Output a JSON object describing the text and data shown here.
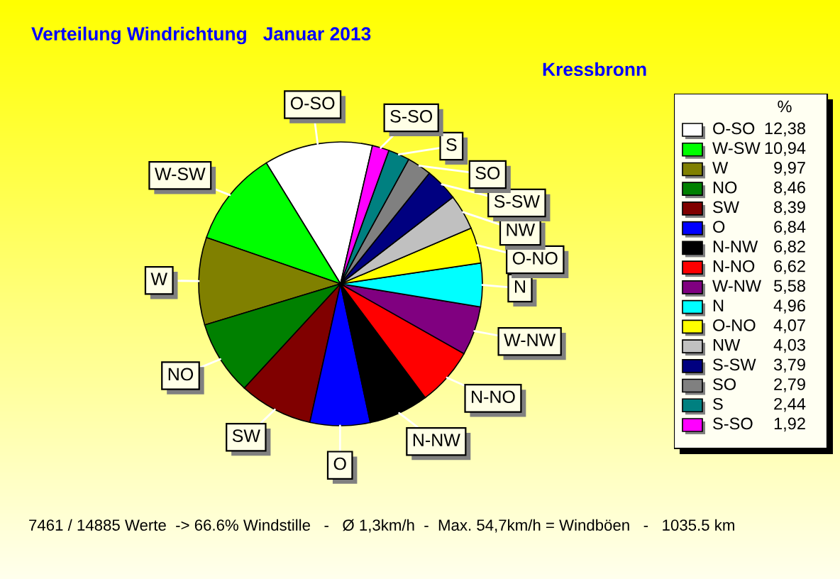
{
  "chart_data": {
    "type": "pie",
    "title": "Verteilung Windrichtung   Januar 2013",
    "subtitle": "Kressbronn",
    "categories": [
      "O-SO",
      "W-SW",
      "W",
      "NO",
      "SW",
      "O",
      "N-NW",
      "N-NO",
      "W-NW",
      "N",
      "O-NO",
      "NW",
      "S-SW",
      "SO",
      "S",
      "S-SO"
    ],
    "values": [
      12.38,
      10.94,
      9.97,
      8.46,
      8.39,
      6.84,
      6.82,
      6.62,
      5.58,
      4.96,
      4.07,
      4.03,
      3.79,
      2.79,
      2.44,
      1.92
    ],
    "colors": [
      "#ffffff",
      "#00ff00",
      "#808000",
      "#008000",
      "#800000",
      "#0000ff",
      "#000000",
      "#ff0000",
      "#800080",
      "#00ffff",
      "#ffff00",
      "#c0c0c0",
      "#000080",
      "#808080",
      "#008080",
      "#ff00ff"
    ],
    "value_labels": [
      "12,38",
      "10,94",
      "9,97",
      "8,46",
      "8,39",
      "6,84",
      "6,82",
      "6,62",
      "5,58",
      "4,96",
      "4,07",
      "4,03",
      "3,79",
      "2,79",
      "2,44",
      "1,92"
    ],
    "legend": "right",
    "legend_title": "%",
    "annotations": [
      "7461 / 14885 Werte  -> 66.6% Windstille   -   Ø 1,3km/h  -  Max. 54,7km/h = Windböen   -   1035.5 km"
    ]
  }
}
